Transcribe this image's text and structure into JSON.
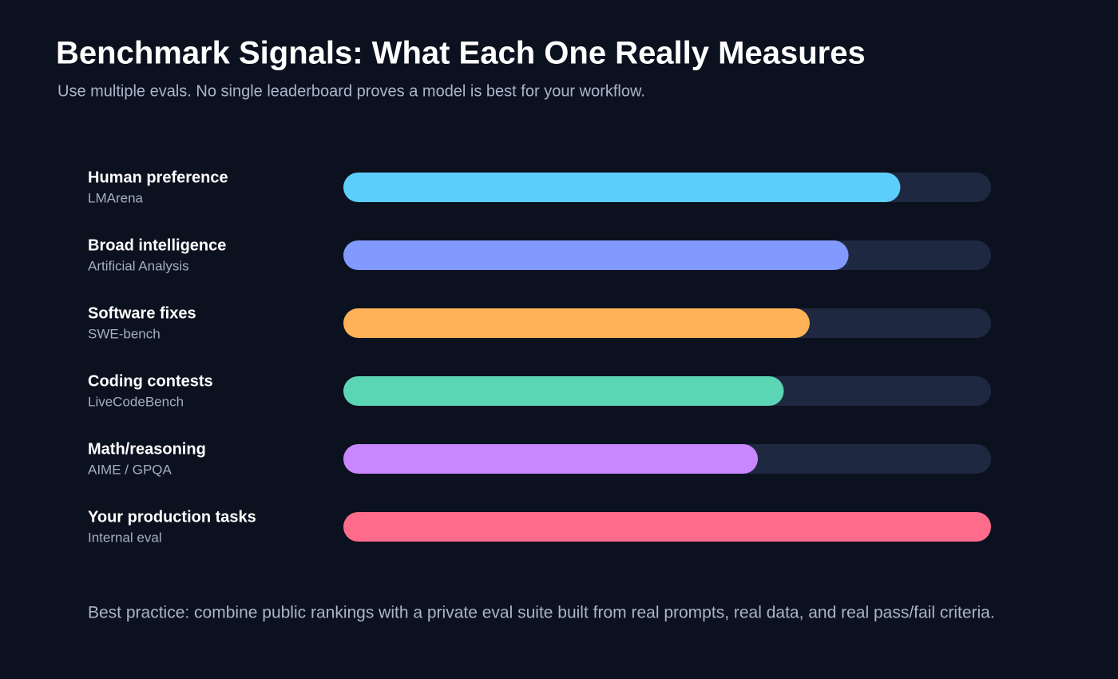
{
  "chart_data": {
    "type": "bar",
    "orientation": "horizontal",
    "title": "Benchmark Signals: What Each One Really Measures",
    "subtitle": "Use multiple evals. No single leaderboard proves a model is best for your workflow.",
    "categories": [
      "Human preference",
      "Broad intelligence",
      "Software fixes",
      "Coding contests",
      "Math/reasoning",
      "Your production tasks"
    ],
    "sources": [
      "LMArena",
      "Artificial Analysis",
      "SWE-bench",
      "LiveCodeBench",
      "AIME / GPQA",
      "Internal eval"
    ],
    "values": [
      86,
      78,
      72,
      68,
      64,
      100
    ],
    "colors": [
      "#5bcefb",
      "#8299ff",
      "#ffb257",
      "#5bd6b5",
      "#c987ff",
      "#ff6b8a"
    ],
    "track_color": "#1e2840",
    "xlim": [
      0,
      100
    ],
    "note": "Best practice: combine public rankings with a private eval suite built from real prompts, real data, and real pass/fail criteria."
  }
}
